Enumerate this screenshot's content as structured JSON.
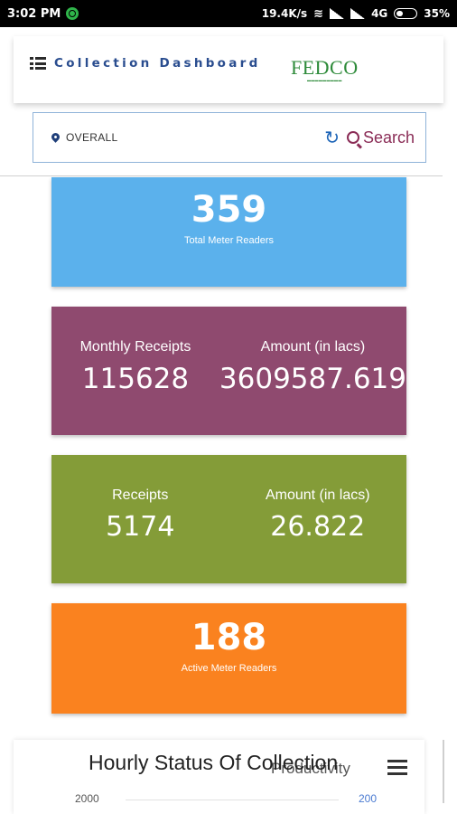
{
  "status_bar": {
    "time": "3:02 PM",
    "speed": "19.4K/s",
    "network": "4G",
    "battery": "35%",
    "battery_level": 0.35
  },
  "header": {
    "title": "Collection  Dashboard",
    "logo_text": "FEDCO",
    "menu_icon": "list-menu-icon"
  },
  "search": {
    "location": "OVERALL",
    "button_label": "Search"
  },
  "cards": {
    "total_readers": {
      "value": "359",
      "label": "Total Meter Readers",
      "color": "#5bb1ec"
    },
    "monthly": {
      "receipts_label": "Monthly Receipts",
      "receipts_value": "115628",
      "amount_label": "Amount (in lacs)",
      "amount_value": "3609587.619",
      "color": "#8f4a6f"
    },
    "daily": {
      "receipts_label": "Receipts",
      "receipts_value": "5174",
      "amount_label": "Amount (in lacs)",
      "amount_value": "26.822",
      "color": "#849c38"
    },
    "active_readers": {
      "value": "188",
      "label": "Active Meter Readers",
      "color": "#fa821f"
    }
  },
  "chart": {
    "title": "Hourly Status Of Collection",
    "subtitle": "Productivity",
    "left_axis_top": "2000",
    "right_axis_top": "200"
  }
}
